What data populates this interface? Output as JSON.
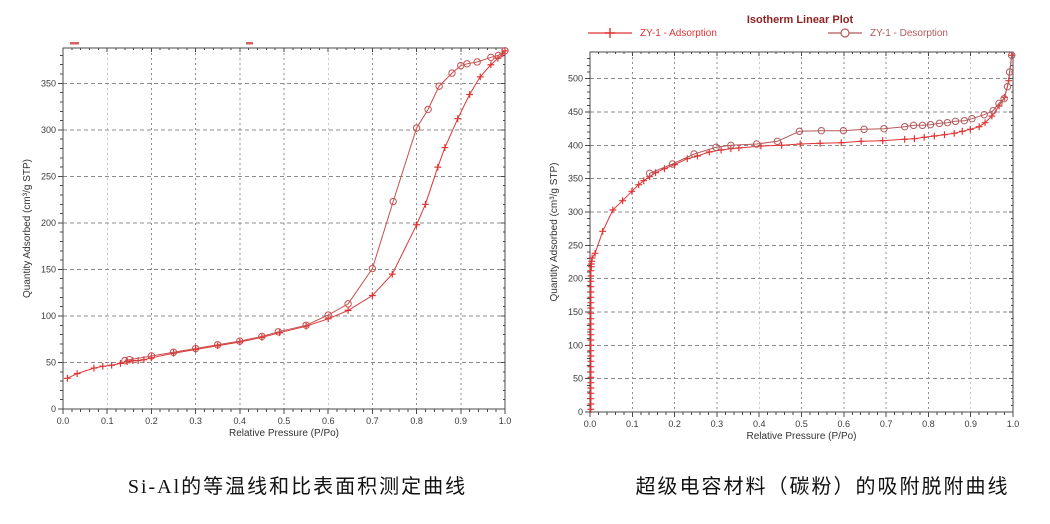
{
  "page": {
    "background": "#ffffff"
  },
  "colors": {
    "adsorption": "#e03434",
    "desorption": "#b5595c",
    "desorption_left": "#c94f4f",
    "grid": "#8c8c8c",
    "frame": "#4a4a4a",
    "tick_text": "#3b3b3b",
    "axis_title_text": "#333333",
    "chart_title_text": "#8e2323",
    "caption_text": "#111111"
  },
  "chart_data": [
    {
      "type": "line",
      "title": "",
      "caption": "Si-Al的等温线和比表面积测定曲线",
      "xlabel": "Relative Pressure (P/Po)",
      "ylabel": "Quantity Adsorbed (cm³/g STP)",
      "xlim": [
        0.0,
        1.0
      ],
      "ylim": [
        0,
        388
      ],
      "x_ticks": [
        "0.0",
        "0.1",
        "0.2",
        "0.3",
        "0.4",
        "0.5",
        "0.6",
        "0.7",
        "0.8",
        "0.9",
        "1.0"
      ],
      "y_ticks": [
        "0",
        "50",
        "100",
        "150",
        "200",
        "250",
        "300",
        "350"
      ],
      "x_major_step": 0.1,
      "x_minor_step": 0.02,
      "y_major_step": 50,
      "y_minor_step": 10,
      "grid": "dashed",
      "legend": null,
      "artifacts": [
        {
          "note": "cropped legend remnant dash",
          "x": 70,
          "y": 42,
          "w": 9,
          "h": 2.5
        },
        {
          "note": "cropped legend remnant dash",
          "x": 246,
          "y": 42,
          "w": 7,
          "h": 2.5
        }
      ],
      "series": [
        {
          "name": "Adsorption",
          "marker": "plus",
          "color": "#e03434",
          "points": [
            [
              0.01,
              33
            ],
            [
              0.032,
              38
            ],
            [
              0.07,
              44
            ],
            [
              0.09,
              46
            ],
            [
              0.11,
              47
            ],
            [
              0.13,
              49
            ],
            [
              0.145,
              51
            ],
            [
              0.158,
              52
            ],
            [
              0.17,
              52
            ],
            [
              0.183,
              53
            ],
            [
              0.2,
              55
            ],
            [
              0.25,
              60
            ],
            [
              0.3,
              64
            ],
            [
              0.35,
              68
            ],
            [
              0.4,
              72
            ],
            [
              0.45,
              77
            ],
            [
              0.49,
              82
            ],
            [
              0.55,
              89
            ],
            [
              0.6,
              97
            ],
            [
              0.645,
              106
            ],
            [
              0.7,
              122
            ],
            [
              0.745,
              145
            ],
            [
              0.8,
              198
            ],
            [
              0.82,
              220
            ],
            [
              0.848,
              260
            ],
            [
              0.864,
              281
            ],
            [
              0.893,
              312
            ],
            [
              0.92,
              338
            ],
            [
              0.944,
              357
            ],
            [
              0.968,
              370
            ],
            [
              0.984,
              377
            ],
            [
              0.995,
              382
            ],
            [
              1.0,
              385
            ]
          ]
        },
        {
          "name": "Desorption",
          "marker": "circle",
          "color": "#c94f4f",
          "points": [
            [
              0.14,
              52
            ],
            [
              0.15,
              53
            ],
            [
              0.2,
              57
            ],
            [
              0.25,
              61
            ],
            [
              0.3,
              65
            ],
            [
              0.35,
              69
            ],
            [
              0.4,
              73
            ],
            [
              0.45,
              78
            ],
            [
              0.487,
              83
            ],
            [
              0.55,
              90
            ],
            [
              0.6,
              101
            ],
            [
              0.645,
              113
            ],
            [
              0.7,
              151
            ],
            [
              0.747,
              223
            ],
            [
              0.8,
              302
            ],
            [
              0.826,
              322
            ],
            [
              0.851,
              347
            ],
            [
              0.88,
              361
            ],
            [
              0.9,
              369
            ],
            [
              0.914,
              371
            ],
            [
              0.937,
              373
            ],
            [
              0.968,
              378
            ],
            [
              0.985,
              380
            ],
            [
              1.0,
              385
            ]
          ]
        }
      ]
    },
    {
      "type": "line",
      "title": "Isotherm Linear Plot",
      "caption": "超级电容材料（碳粉）的吸附脱附曲线",
      "xlabel": "Relative Pressure (P/Po)",
      "ylabel": "Quantity Adsorbed (cm³/g STP)",
      "xlim": [
        0.0,
        1.0
      ],
      "ylim": [
        0,
        540
      ],
      "x_ticks": [
        "0.0",
        "0.1",
        "0.2",
        "0.3",
        "0.4",
        "0.5",
        "0.6",
        "0.7",
        "0.8",
        "0.9",
        "1.0"
      ],
      "y_ticks": [
        "0",
        "50",
        "100",
        "150",
        "200",
        "250",
        "300",
        "350",
        "400",
        "450",
        "500"
      ],
      "x_major_step": 0.1,
      "x_minor_step": 0.02,
      "y_major_step": 50,
      "y_minor_step": 10,
      "grid": "dashed",
      "legend": {
        "position": "top",
        "items": [
          {
            "label": "ZY-1 - Adsorption",
            "marker": "plus",
            "color": "#e03434"
          },
          {
            "label": "ZY-1 - Desorption",
            "marker": "circle",
            "color": "#b5595c"
          }
        ]
      },
      "artifacts": [],
      "series": [
        {
          "name": "ZY-1 - Adsorption",
          "marker": "plus",
          "color": "#e03434",
          "points": [
            [
              0.002,
              4
            ],
            [
              0.002,
              12
            ],
            [
              0.002,
              20
            ],
            [
              0.002,
              28
            ],
            [
              0.002,
              36
            ],
            [
              0.002,
              44
            ],
            [
              0.002,
              52
            ],
            [
              0.002,
              60
            ],
            [
              0.002,
              68
            ],
            [
              0.002,
              76
            ],
            [
              0.002,
              84
            ],
            [
              0.002,
              92
            ],
            [
              0.002,
              100
            ],
            [
              0.002,
              108
            ],
            [
              0.002,
              116
            ],
            [
              0.002,
              124
            ],
            [
              0.002,
              132
            ],
            [
              0.002,
              140
            ],
            [
              0.002,
              148
            ],
            [
              0.002,
              156
            ],
            [
              0.002,
              164
            ],
            [
              0.002,
              172
            ],
            [
              0.002,
              180
            ],
            [
              0.002,
              188
            ],
            [
              0.002,
              196
            ],
            [
              0.002,
              204
            ],
            [
              0.002,
              212
            ],
            [
              0.003,
              218
            ],
            [
              0.003,
              222
            ],
            [
              0.004,
              226
            ],
            [
              0.005,
              231
            ],
            [
              0.012,
              238
            ],
            [
              0.03,
              271
            ],
            [
              0.054,
              303
            ],
            [
              0.077,
              317
            ],
            [
              0.099,
              331
            ],
            [
              0.115,
              341
            ],
            [
              0.127,
              347
            ],
            [
              0.141,
              353
            ],
            [
              0.155,
              359
            ],
            [
              0.176,
              365
            ],
            [
              0.2,
              371
            ],
            [
              0.23,
              380
            ],
            [
              0.254,
              384
            ],
            [
              0.282,
              390
            ],
            [
              0.31,
              393
            ],
            [
              0.333,
              395
            ],
            [
              0.352,
              396
            ],
            [
              0.404,
              399
            ],
            [
              0.453,
              400
            ],
            [
              0.497,
              402
            ],
            [
              0.544,
              403
            ],
            [
              0.594,
              404
            ],
            [
              0.641,
              406
            ],
            [
              0.692,
              407
            ],
            [
              0.744,
              409
            ],
            [
              0.767,
              410
            ],
            [
              0.79,
              412
            ],
            [
              0.814,
              414
            ],
            [
              0.838,
              416
            ],
            [
              0.861,
              418
            ],
            [
              0.88,
              421
            ],
            [
              0.899,
              424
            ],
            [
              0.92,
              428
            ],
            [
              0.934,
              434
            ],
            [
              0.95,
              444
            ],
            [
              0.967,
              459
            ],
            [
              0.98,
              472
            ],
            [
              0.99,
              497
            ],
            [
              0.997,
              535
            ]
          ]
        },
        {
          "name": "ZY-1 - Desorption",
          "marker": "circle",
          "color": "#b5595c",
          "points": [
            [
              0.997,
              535
            ],
            [
              0.992,
              510
            ],
            [
              0.987,
              488
            ],
            [
              0.979,
              470
            ],
            [
              0.967,
              463
            ],
            [
              0.953,
              452
            ],
            [
              0.932,
              446
            ],
            [
              0.903,
              440
            ],
            [
              0.885,
              437
            ],
            [
              0.864,
              436
            ],
            [
              0.845,
              434
            ],
            [
              0.826,
              433
            ],
            [
              0.805,
              431
            ],
            [
              0.786,
              430
            ],
            [
              0.765,
              430
            ],
            [
              0.744,
              428
            ],
            [
              0.695,
              425
            ],
            [
              0.648,
              424
            ],
            [
              0.599,
              422
            ],
            [
              0.547,
              422
            ],
            [
              0.495,
              421
            ],
            [
              0.443,
              406
            ],
            [
              0.394,
              402
            ],
            [
              0.333,
              400
            ],
            [
              0.298,
              397
            ],
            [
              0.246,
              387
            ],
            [
              0.195,
              372
            ],
            [
              0.141,
              358
            ]
          ]
        }
      ]
    }
  ]
}
